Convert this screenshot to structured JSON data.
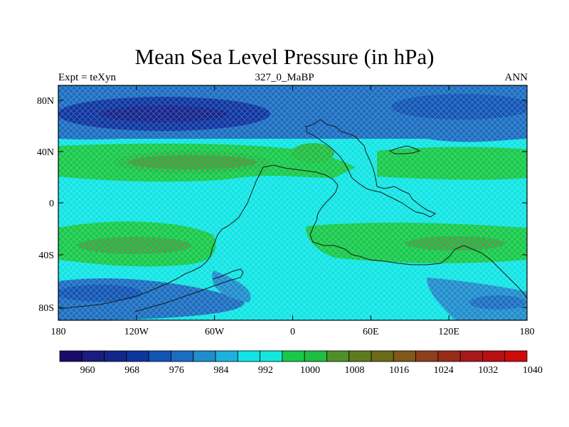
{
  "title": "Mean Sea Level Pressure (in hPa)",
  "left_string": "Expt = teXyn",
  "center_string": "327_0_MaBP",
  "right_string": "ANN",
  "lon_ticks": [
    "180",
    "120W",
    "60W",
    "0",
    "60E",
    "120E",
    "180"
  ],
  "lat_ticks": [
    "80N",
    "40N",
    "0",
    "40S",
    "80S"
  ],
  "colorbar": {
    "colors": [
      "#1a0b6b",
      "#1c1b7e",
      "#14268c",
      "#0d35a0",
      "#1054b4",
      "#1a6dc0",
      "#1e8dcc",
      "#1fb0dc",
      "#10e4e4",
      "#12e7e0",
      "#16c94a",
      "#1fbd42",
      "#4f8f2a",
      "#5e7a1e",
      "#6a6a18",
      "#80581a",
      "#8e3e1a",
      "#9a2a1a",
      "#a8181a",
      "#b80f14",
      "#d00a0a"
    ],
    "labels": [
      "960",
      "968",
      "976",
      "984",
      "992",
      "1000",
      "1008",
      "1016",
      "1024",
      "1032",
      "1040"
    ]
  },
  "legend_colors": {
    "deep_low": "#0d35a0",
    "low": "#1a6dc0",
    "mid": "#10e4e4",
    "high": "#16c94a",
    "very_high": "#8e3e1a"
  }
}
